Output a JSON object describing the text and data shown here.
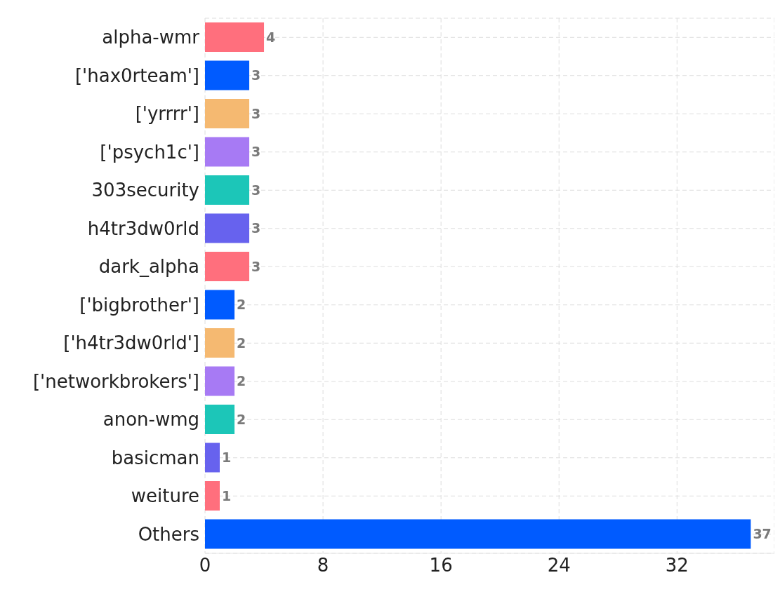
{
  "chart_data": {
    "type": "bar",
    "orientation": "horizontal",
    "categories": [
      "alpha-wmr",
      "['hax0rteam']",
      "['yrrrr']",
      "['psych1c']",
      "303security",
      "h4tr3dw0rld",
      "dark_alpha",
      "['bigbrother']",
      "['h4tr3dw0rld']",
      "['networkbrokers']",
      "anon-wmg",
      "basicman",
      "weiture",
      "Others"
    ],
    "values": [
      4,
      3,
      3,
      3,
      3,
      3,
      3,
      2,
      2,
      2,
      2,
      1,
      1,
      37
    ],
    "colors": [
      "#ff6f7d",
      "#005bff",
      "#f5b971",
      "#a77af4",
      "#1cc6b8",
      "#6762ee",
      "#ff6f7d",
      "#005bff",
      "#f5b971",
      "#a77af4",
      "#1cc6b8",
      "#6762ee",
      "#ff6f7d",
      "#005bff"
    ],
    "xlim": [
      0,
      38.6
    ],
    "xticks": [
      0,
      8,
      16,
      24,
      32
    ],
    "grid": true,
    "data_labels": true
  }
}
